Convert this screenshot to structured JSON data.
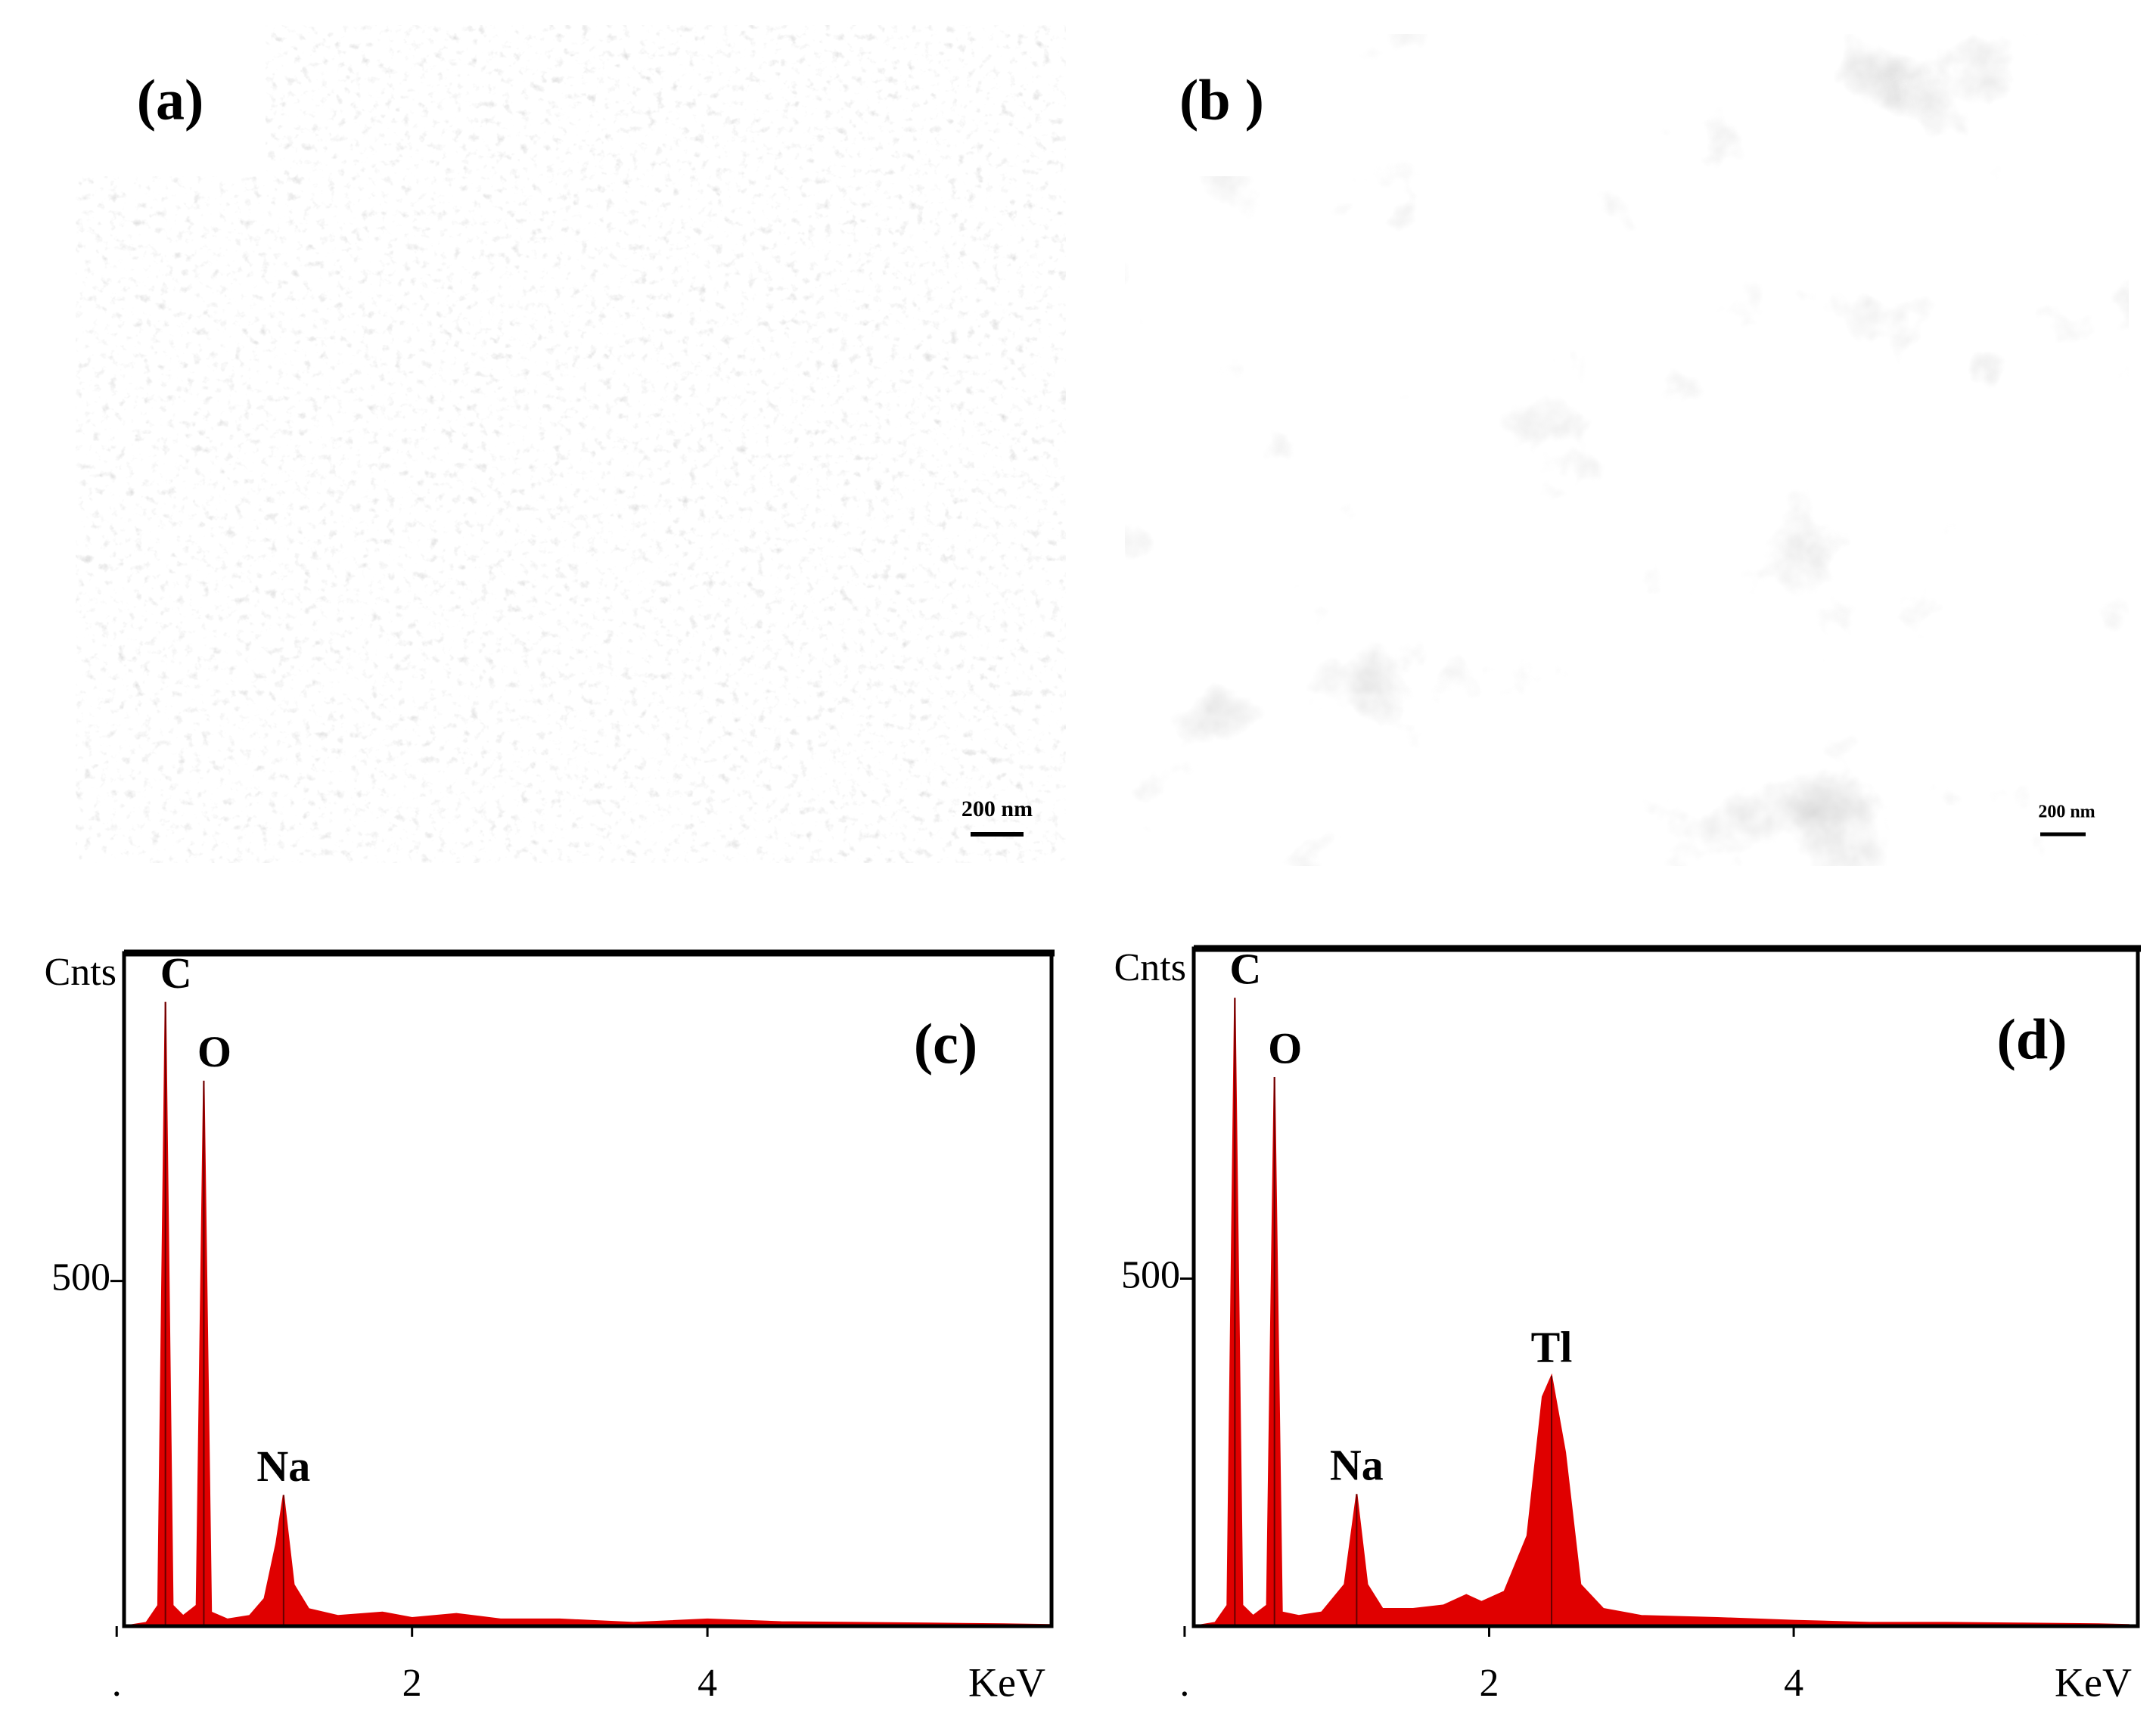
{
  "images": [
    {
      "label": "(a)",
      "scale_bar": "200 nm"
    },
    {
      "label": "(b )",
      "scale_bar": "200 nm"
    }
  ],
  "chart_data": [
    {
      "type": "area",
      "panel_label": "(c)",
      "y_label": "Cnts",
      "x_label": "KeV",
      "color": "#e00000",
      "x": [
        0.05,
        0.2,
        0.28,
        0.33,
        0.38,
        0.45,
        0.54,
        0.59,
        0.64,
        0.75,
        0.9,
        1.0,
        1.08,
        1.13,
        1.2,
        1.3,
        1.5,
        1.8,
        2.0,
        2.3,
        2.6,
        3.0,
        3.5,
        4.0,
        4.5,
        5.0,
        5.5,
        6.0,
        6.33
      ],
      "values": [
        0,
        5,
        30,
        904,
        30,
        15,
        30,
        790,
        20,
        10,
        15,
        40,
        120,
        190,
        60,
        25,
        15,
        20,
        12,
        18,
        10,
        10,
        5,
        10,
        6,
        5,
        4,
        3,
        2
      ],
      "peaks": [
        {
          "name": "C",
          "x": 0.33,
          "value": 904
        },
        {
          "name": "O",
          "x": 0.59,
          "value": 790
        },
        {
          "name": "Na",
          "x": 1.13,
          "value": 190
        }
      ],
      "xlim": [
        0.05,
        6.33
      ],
      "ylim": [
        0,
        975
      ],
      "yticks": [
        500
      ],
      "xticks": [
        {
          "value": 0,
          "label": "."
        },
        2,
        4
      ]
    },
    {
      "type": "area",
      "panel_label": "(d)",
      "y_label": "Cnts",
      "x_label": "KeV",
      "color": "#e00000",
      "x": [
        0.06,
        0.2,
        0.28,
        0.33,
        0.38,
        0.45,
        0.54,
        0.59,
        0.64,
        0.75,
        0.9,
        1.05,
        1.13,
        1.2,
        1.3,
        1.5,
        1.7,
        1.85,
        1.95,
        2.1,
        2.25,
        2.35,
        2.41,
        2.5,
        2.6,
        2.75,
        3.0,
        3.5,
        4.0,
        4.5,
        5.0,
        5.5,
        6.0,
        6.2
      ],
      "values": [
        0,
        5,
        30,
        904,
        30,
        15,
        30,
        790,
        20,
        15,
        20,
        60,
        190,
        60,
        25,
        25,
        30,
        45,
        35,
        50,
        130,
        330,
        360,
        250,
        60,
        25,
        15,
        12,
        8,
        5,
        5,
        4,
        3,
        2
      ],
      "peaks": [
        {
          "name": "C",
          "x": 0.33,
          "value": 904
        },
        {
          "name": "O",
          "x": 0.59,
          "value": 790
        },
        {
          "name": "Na",
          "x": 1.13,
          "value": 190
        },
        {
          "name": "Tl",
          "x": 2.41,
          "value": 360
        }
      ],
      "xlim": [
        0.06,
        6.26
      ],
      "ylim": [
        0,
        975
      ],
      "yticks": [
        500
      ],
      "xticks": [
        {
          "value": 0,
          "label": "."
        },
        2,
        4
      ]
    }
  ]
}
